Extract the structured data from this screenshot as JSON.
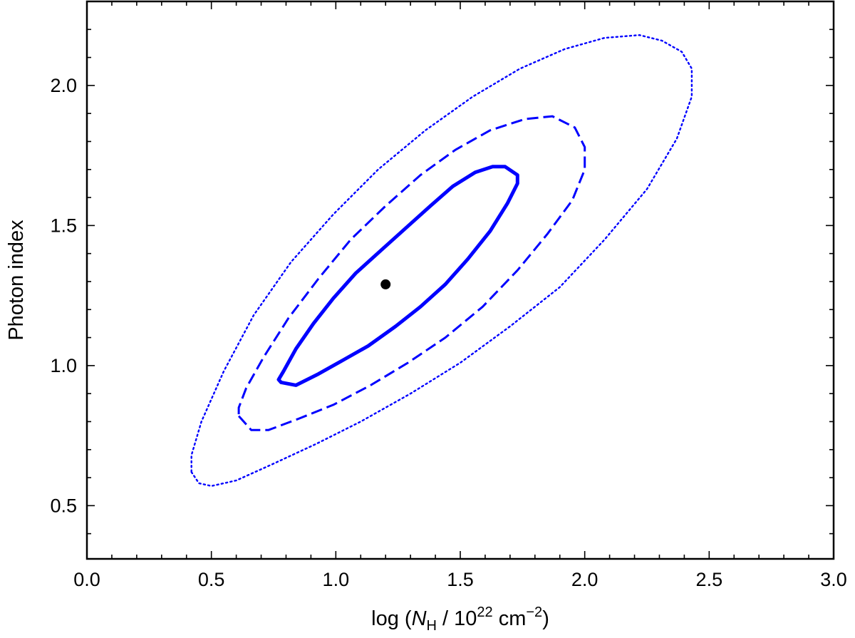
{
  "chart_data": {
    "type": "scatter",
    "xlabel": {
      "prefix": "log (",
      "sym": "N",
      "sub": "H",
      "mid": " / 10",
      "sup1": "22",
      "unit": " cm",
      "sup2": "−2",
      "suffix": ")"
    },
    "ylabel": "Photon index",
    "xlim": [
      0.0,
      3.0
    ],
    "ylim": [
      0.31,
      2.3
    ],
    "x_ticks": [
      "0.0",
      "0.5",
      "1.0",
      "1.5",
      "2.0",
      "2.5",
      "3.0"
    ],
    "y_ticks": [
      "0.5",
      "1.0",
      "1.5",
      "2.0"
    ],
    "best_fit": {
      "x": 1.2,
      "y": 1.29,
      "color": "#000000"
    },
    "series": [
      {
        "style": "solid",
        "color": "#0000ff",
        "points": [
          [
            0.78,
            0.94
          ],
          [
            0.84,
            0.93
          ],
          [
            0.93,
            0.97
          ],
          [
            1.03,
            1.02
          ],
          [
            1.13,
            1.07
          ],
          [
            1.24,
            1.14
          ],
          [
            1.34,
            1.21
          ],
          [
            1.44,
            1.29
          ],
          [
            1.53,
            1.38
          ],
          [
            1.62,
            1.48
          ],
          [
            1.69,
            1.58
          ],
          [
            1.73,
            1.65
          ],
          [
            1.73,
            1.68
          ],
          [
            1.68,
            1.71
          ],
          [
            1.63,
            1.71
          ],
          [
            1.56,
            1.69
          ],
          [
            1.47,
            1.64
          ],
          [
            1.38,
            1.57
          ],
          [
            1.28,
            1.49
          ],
          [
            1.18,
            1.41
          ],
          [
            1.08,
            1.33
          ],
          [
            0.99,
            1.24
          ],
          [
            0.91,
            1.15
          ],
          [
            0.84,
            1.06
          ],
          [
            0.79,
            0.98
          ],
          [
            0.77,
            0.95
          ]
        ]
      },
      {
        "style": "dashed",
        "color": "#0000ff",
        "points": [
          [
            0.61,
            0.82
          ],
          [
            0.66,
            0.77
          ],
          [
            0.73,
            0.77
          ],
          [
            0.85,
            0.81
          ],
          [
            0.99,
            0.86
          ],
          [
            1.14,
            0.93
          ],
          [
            1.29,
            1.01
          ],
          [
            1.44,
            1.1
          ],
          [
            1.59,
            1.21
          ],
          [
            1.73,
            1.34
          ],
          [
            1.85,
            1.47
          ],
          [
            1.95,
            1.59
          ],
          [
            2.0,
            1.7
          ],
          [
            2.0,
            1.78
          ],
          [
            1.96,
            1.85
          ],
          [
            1.87,
            1.89
          ],
          [
            1.76,
            1.88
          ],
          [
            1.62,
            1.84
          ],
          [
            1.48,
            1.77
          ],
          [
            1.34,
            1.68
          ],
          [
            1.2,
            1.57
          ],
          [
            1.06,
            1.45
          ],
          [
            0.93,
            1.31
          ],
          [
            0.81,
            1.17
          ],
          [
            0.71,
            1.03
          ],
          [
            0.64,
            0.92
          ],
          [
            0.61,
            0.85
          ]
        ]
      },
      {
        "style": "dotted",
        "color": "#0000ff",
        "points": [
          [
            0.42,
            0.62
          ],
          [
            0.45,
            0.58
          ],
          [
            0.5,
            0.57
          ],
          [
            0.6,
            0.59
          ],
          [
            0.75,
            0.65
          ],
          [
            0.92,
            0.72
          ],
          [
            1.1,
            0.8
          ],
          [
            1.3,
            0.9
          ],
          [
            1.5,
            1.01
          ],
          [
            1.7,
            1.14
          ],
          [
            1.9,
            1.28
          ],
          [
            2.08,
            1.45
          ],
          [
            2.25,
            1.63
          ],
          [
            2.37,
            1.81
          ],
          [
            2.43,
            1.96
          ],
          [
            2.43,
            2.06
          ],
          [
            2.39,
            2.12
          ],
          [
            2.31,
            2.16
          ],
          [
            2.22,
            2.18
          ],
          [
            2.08,
            2.17
          ],
          [
            1.92,
            2.13
          ],
          [
            1.74,
            2.06
          ],
          [
            1.55,
            1.96
          ],
          [
            1.36,
            1.84
          ],
          [
            1.17,
            1.7
          ],
          [
            0.99,
            1.54
          ],
          [
            0.82,
            1.37
          ],
          [
            0.67,
            1.18
          ],
          [
            0.55,
            0.98
          ],
          [
            0.46,
            0.8
          ],
          [
            0.42,
            0.68
          ]
        ]
      }
    ]
  }
}
